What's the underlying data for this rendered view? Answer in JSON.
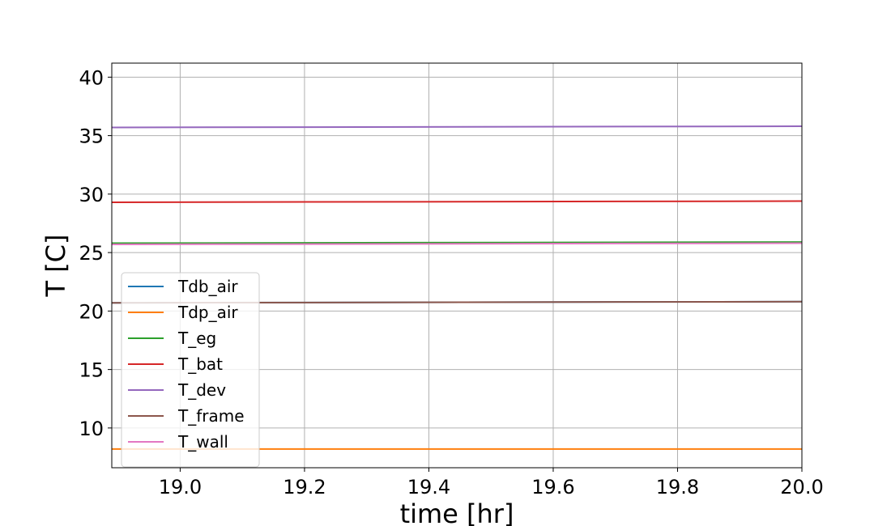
{
  "chart_data": {
    "type": "line",
    "title": "",
    "xlabel": "time [hr]",
    "ylabel": "T [C]",
    "xlim": [
      18.89,
      20.0
    ],
    "ylim": [
      6.6,
      41.2
    ],
    "xticks": [
      19.0,
      19.2,
      19.4,
      19.6,
      19.8,
      20.0
    ],
    "xtick_labels": [
      "19.0",
      "19.2",
      "19.4",
      "19.6",
      "19.8",
      "20.0"
    ],
    "yticks": [
      10,
      15,
      20,
      25,
      30,
      35,
      40
    ],
    "ytick_labels": [
      "10",
      "15",
      "20",
      "25",
      "30",
      "35",
      "40"
    ],
    "grid": true,
    "legend_position": "lower-left",
    "x": [
      18.89,
      20.0
    ],
    "series": [
      {
        "name": "Tdb_air",
        "color": "#1f77b4",
        "values": [
          20.7,
          20.8
        ]
      },
      {
        "name": "Tdp_air",
        "color": "#ff7f0e",
        "values": [
          8.2,
          8.2
        ]
      },
      {
        "name": "T_eg",
        "color": "#2ca02c",
        "values": [
          25.8,
          25.9
        ]
      },
      {
        "name": "T_bat",
        "color": "#d62728",
        "values": [
          29.3,
          29.4
        ]
      },
      {
        "name": "T_dev",
        "color": "#9467bd",
        "values": [
          35.7,
          35.8
        ]
      },
      {
        "name": "T_frame",
        "color": "#8c564b",
        "values": [
          20.7,
          20.8
        ]
      },
      {
        "name": "T_wall",
        "color": "#e377c2",
        "values": [
          25.7,
          25.8
        ]
      }
    ]
  }
}
